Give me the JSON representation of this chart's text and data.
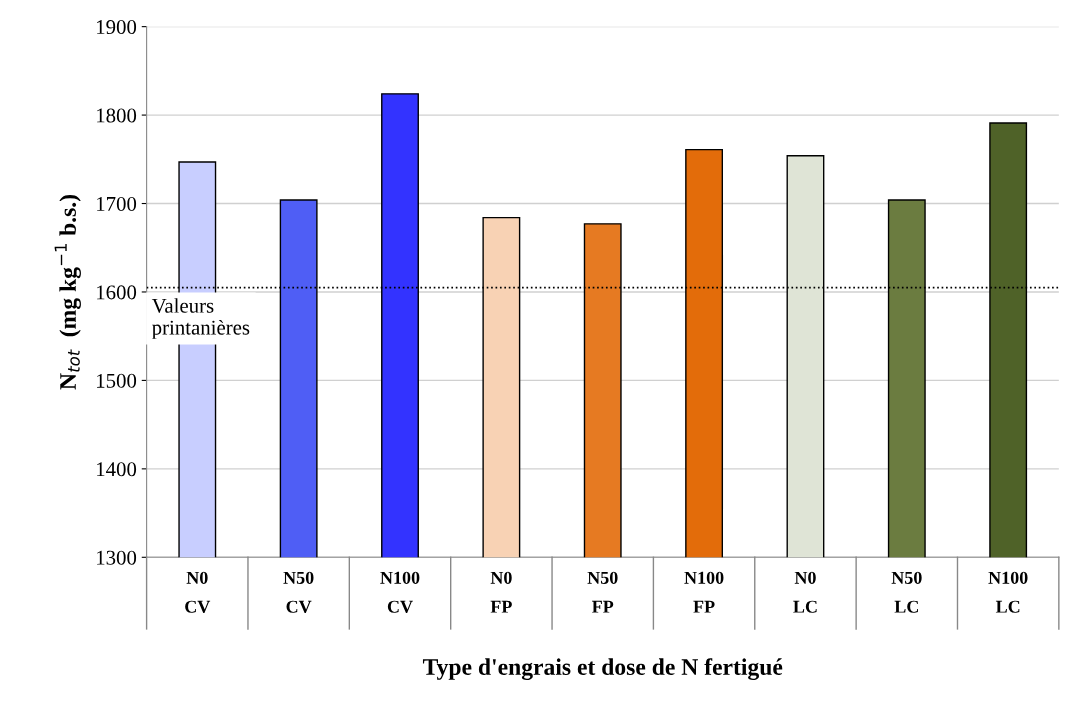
{
  "chart_data": {
    "type": "bar",
    "xlabel": "Type d'engrais et dose de N fertigué",
    "ylabel": "N$_{tot}$  (mg kg$^{−1}$ b.s.)",
    "categories": [
      "N0\nCV",
      "N50\nCV",
      "N100\nCV",
      "N0\nFP",
      "N50\nFP",
      "N100\nFP",
      "N0\nLC",
      "N50\nLC",
      "N100\nLC"
    ],
    "values": [
      1747,
      1704,
      1824,
      1684,
      1677,
      1761,
      1754,
      1704,
      1791
    ],
    "colors": [
      "#c8ceff",
      "#4f5ef5",
      "#3333ff",
      "#f8d2b4",
      "#e67a22",
      "#e36c0a",
      "#dfe4d6",
      "#6b7c40",
      "#4f6228"
    ],
    "ylim": [
      1300,
      1900
    ],
    "yticks": [
      1300,
      1400,
      1500,
      1600,
      1700,
      1800,
      1900
    ],
    "grid": "y",
    "ref_lines": [
      {
        "axis": "y",
        "value": 1605,
        "label": "Valeurs\nprintanières",
        "color": "#000000",
        "line_style": "dotted"
      }
    ]
  }
}
